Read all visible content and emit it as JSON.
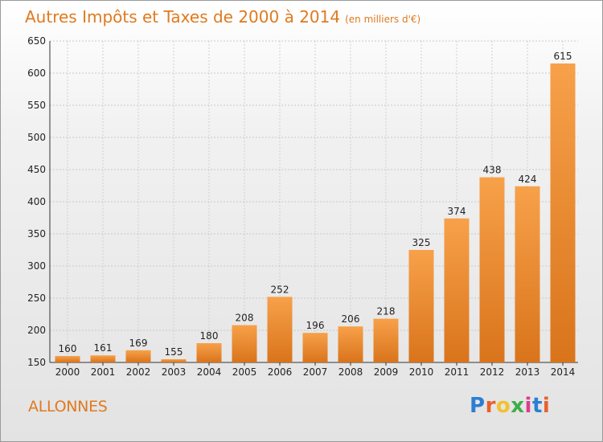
{
  "title": "Autres Impôts et Taxes de 2000 à 2014",
  "subtitle": "(en milliers d'€)",
  "place": "ALLONNES",
  "logo": {
    "text": "Proxiti",
    "colors": [
      "#2b7fd1",
      "#e8612c",
      "#f2c12e",
      "#3fae49",
      "#d93f8f",
      "#2b7fd1",
      "#e8612c"
    ]
  },
  "colors": {
    "bar_top": "#f7a14a",
    "bar_bottom": "#d9741b",
    "accent": "#e07a1f"
  },
  "chart_data": {
    "type": "bar",
    "categories": [
      "2000",
      "2001",
      "2002",
      "2003",
      "2004",
      "2005",
      "2006",
      "2007",
      "2008",
      "2009",
      "2010",
      "2011",
      "2012",
      "2013",
      "2014"
    ],
    "values": [
      160,
      161,
      169,
      155,
      180,
      208,
      252,
      196,
      206,
      218,
      325,
      374,
      438,
      424,
      615
    ],
    "title": "Autres Impôts et Taxes de 2000 à 2014",
    "subtitle": "(en milliers d'€)",
    "xlabel": "",
    "ylabel": "",
    "ylim": [
      150,
      650
    ],
    "yticks": [
      150,
      200,
      250,
      300,
      350,
      400,
      450,
      500,
      550,
      600,
      650
    ],
    "grid": true
  }
}
